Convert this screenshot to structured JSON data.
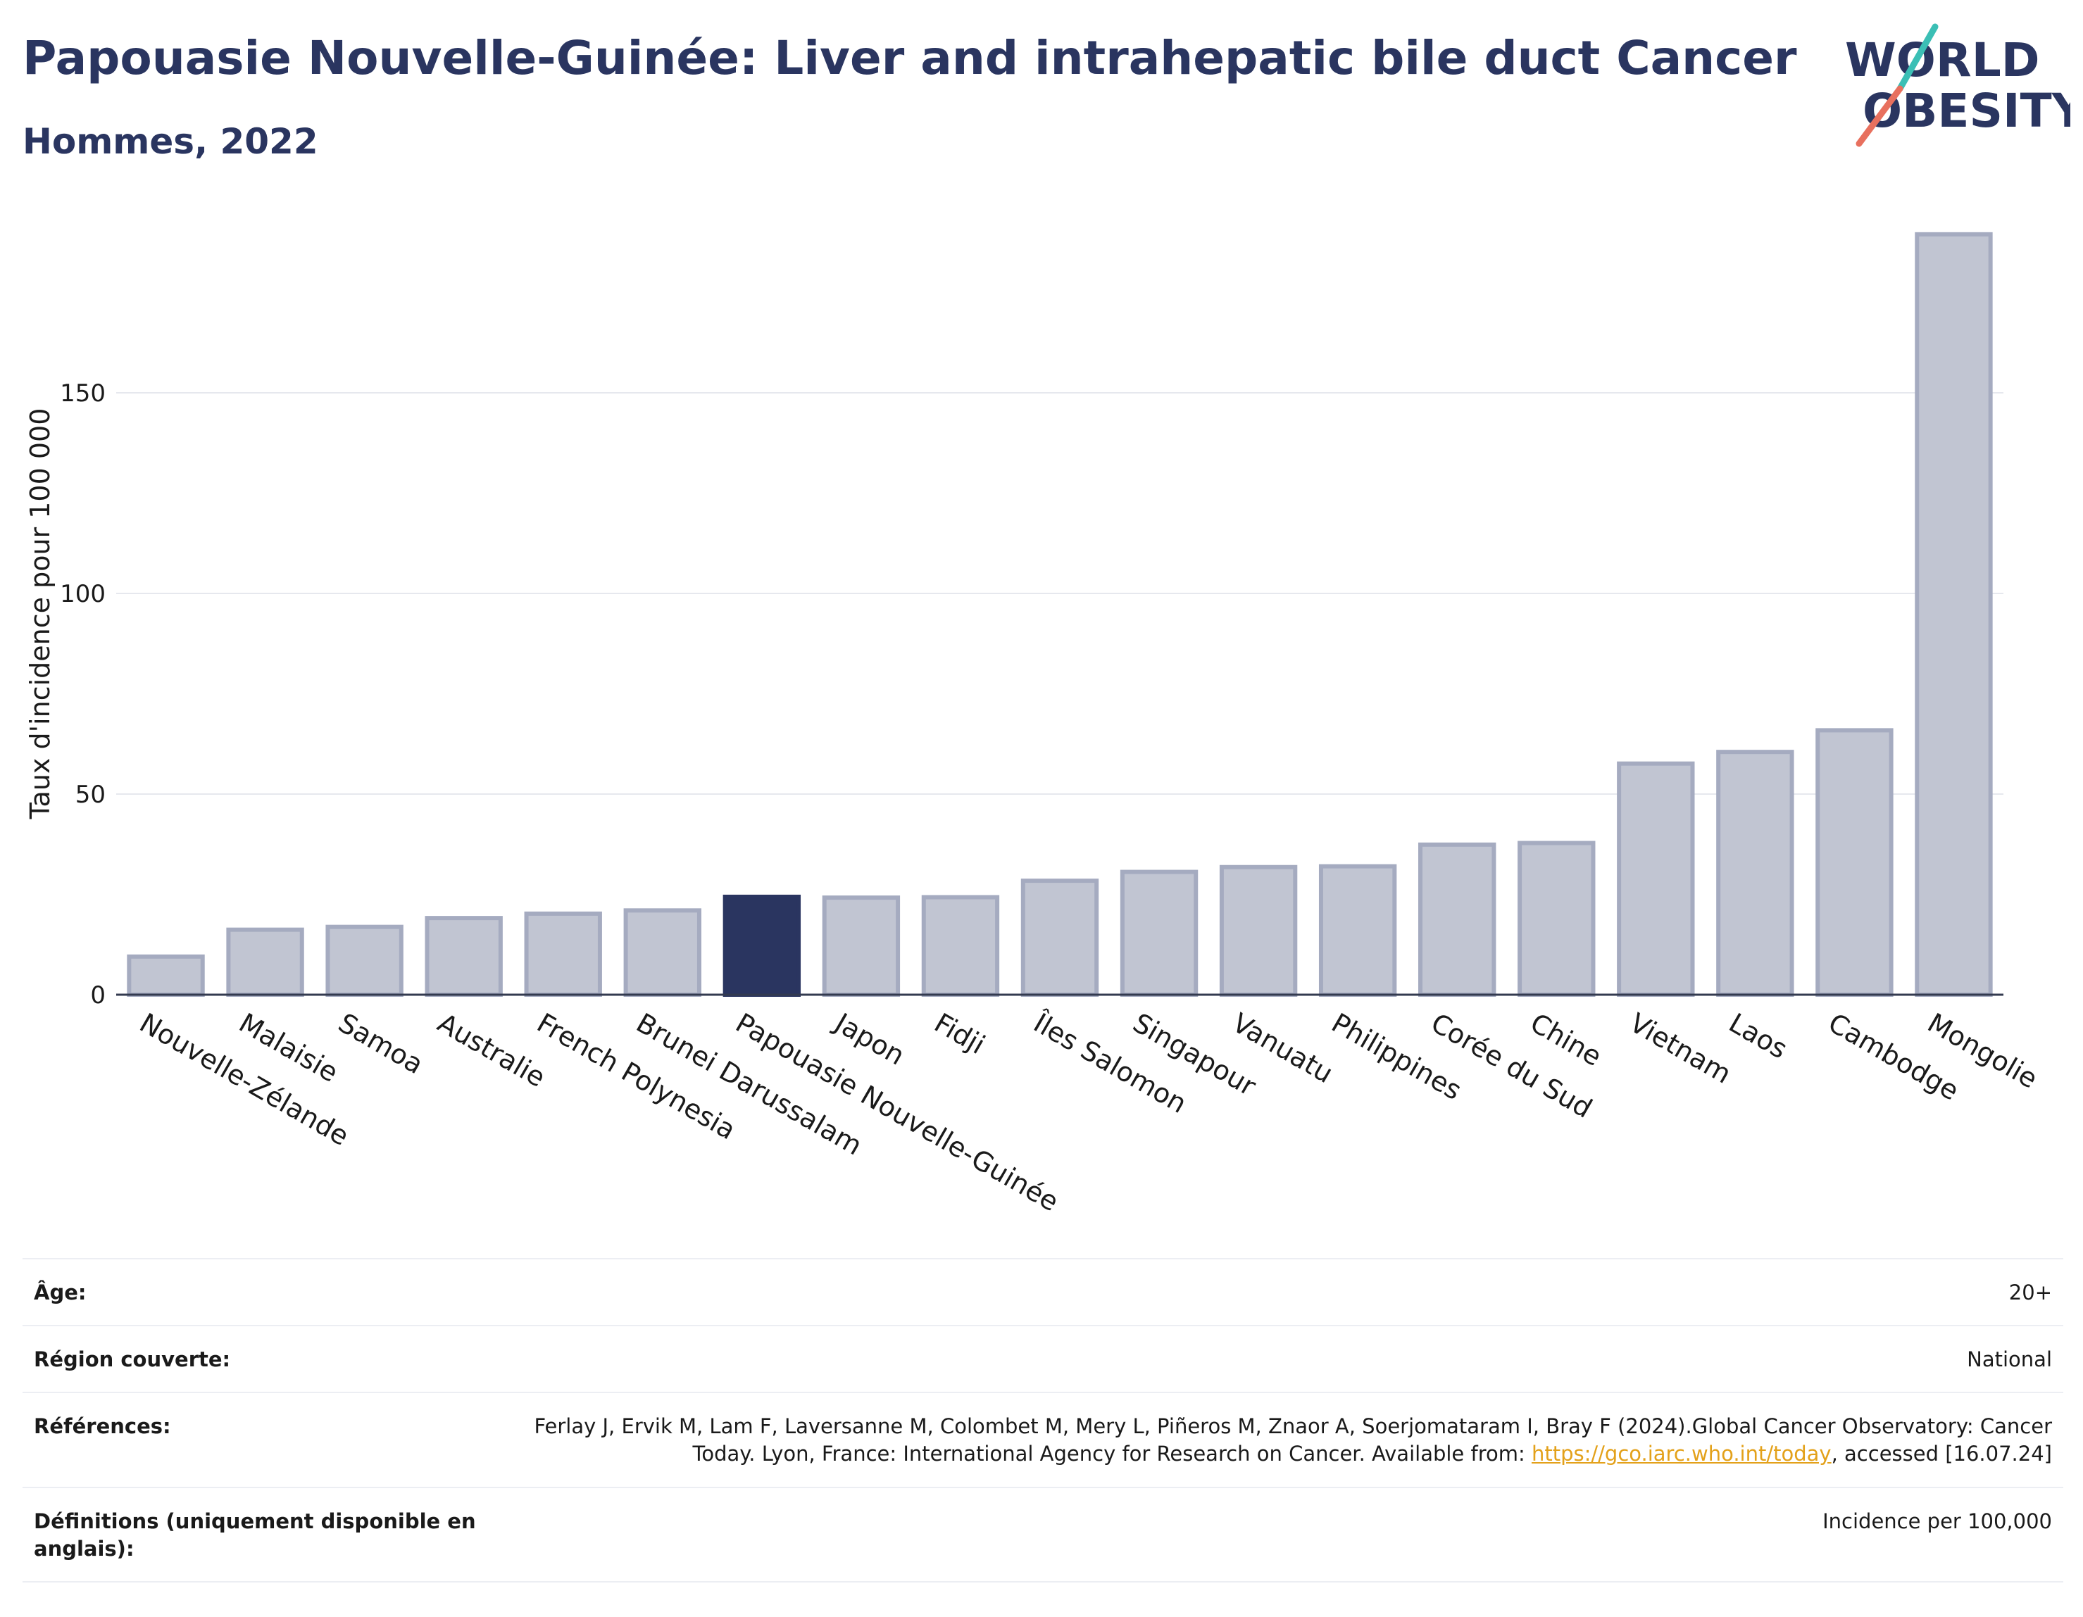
{
  "header": {
    "title": "Papouasie Nouvelle-Guinée: Liver and intrahepatic bile duct Cancer",
    "subtitle": "Hommes, 2022"
  },
  "logo": {
    "line1": "WORLD",
    "line2": "OBESITY",
    "colors": {
      "navy": "#2a3560",
      "teal": "#3bbfb5",
      "coral": "#e8705e"
    }
  },
  "chart_data": {
    "type": "bar",
    "ylabel": "Taux d'incidence pour 100 000",
    "ylim": [
      0,
      190
    ],
    "yticks": [
      0,
      50,
      100,
      150
    ],
    "grid": true,
    "highlight": "Papouasie Nouvelle-Guinée",
    "colors": {
      "bar": "#c1c5d2",
      "bar_edge": "#a5abc0",
      "highlight": "#2a3560"
    },
    "categories": [
      "Nouvelle-Zélande",
      "Malaisie",
      "Samoa",
      "Australie",
      "French Polynesia",
      "Brunei Darussalam",
      "Papouasie Nouvelle-Guinée",
      "Japon",
      "Fidji",
      "Îles Salomon",
      "Singapour",
      "Vanuatu",
      "Philippines",
      "Corée du Sud",
      "Chine",
      "Vietnam",
      "Laos",
      "Cambodge",
      "Mongolie"
    ],
    "values": [
      9.5,
      16.2,
      16.9,
      19.1,
      20.2,
      21.0,
      24.4,
      24.2,
      24.3,
      28.4,
      30.6,
      31.8,
      32.0,
      37.4,
      37.8,
      57.6,
      60.5,
      65.9,
      189.5
    ]
  },
  "meta": {
    "rows": [
      {
        "label": "Âge:",
        "value": "20+"
      },
      {
        "label": "Région couverte:",
        "value": "National"
      },
      {
        "label": "Références:",
        "value_pre": "Ferlay J, Ervik M, Lam F, Laversanne M, Colombet M, Mery L, Piñeros M, Znaor A, Soerjomataram I, Bray F (2024).Global Cancer Observatory: Cancer Today. Lyon, France: International Agency for Research on Cancer. Available from: ",
        "link": "https://gco.iarc.who.int/today",
        "value_post": ", accessed [16.07.24]"
      },
      {
        "label": "Définitions (uniquement disponible en anglais):",
        "value": "Incidence per 100,000"
      }
    ]
  }
}
